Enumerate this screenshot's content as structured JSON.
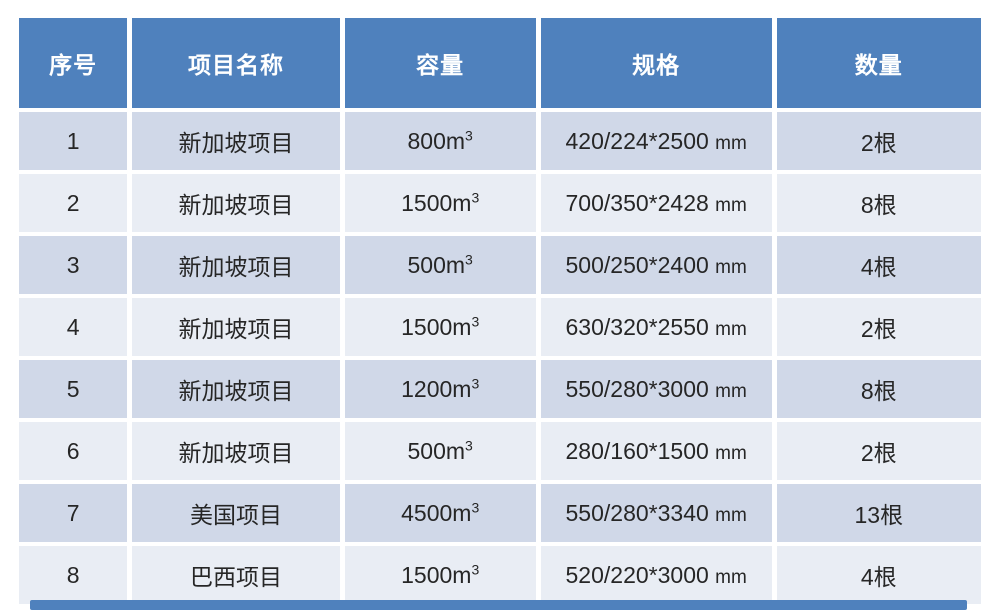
{
  "colors": {
    "header_bg": "#4f81bd",
    "header_text": "#ffffff",
    "band_dark": "#d0d8e8",
    "band_light": "#e9edf4",
    "body_text": "#262626"
  },
  "table": {
    "columns": [
      {
        "label": "序号"
      },
      {
        "label": "项目名称"
      },
      {
        "label": "容量"
      },
      {
        "label": "规格"
      },
      {
        "label": "数量"
      }
    ],
    "rows": [
      {
        "no": "1",
        "name": "新加坡项目",
        "cap": "800m",
        "cap_sup": "3",
        "spec": "420/224*2500",
        "spec_unit": "mm",
        "qty": "2根"
      },
      {
        "no": "2",
        "name": "新加坡项目",
        "cap": "1500m",
        "cap_sup": "3",
        "spec": "700/350*2428",
        "spec_unit": "mm",
        "qty": "8根"
      },
      {
        "no": "3",
        "name": "新加坡项目",
        "cap": "500m",
        "cap_sup": "3",
        "spec": "500/250*2400",
        "spec_unit": "mm",
        "qty": "4根"
      },
      {
        "no": "4",
        "name": "新加坡项目",
        "cap": "1500m",
        "cap_sup": "3",
        "spec": "630/320*2550",
        "spec_unit": "mm",
        "qty": "2根"
      },
      {
        "no": "5",
        "name": "新加坡项目",
        "cap": "1200m",
        "cap_sup": "3",
        "spec": "550/280*3000",
        "spec_unit": "mm",
        "qty": "8根"
      },
      {
        "no": "6",
        "name": "新加坡项目",
        "cap": "500m",
        "cap_sup": "3",
        "spec": "280/160*1500",
        "spec_unit": "mm",
        "qty": "2根"
      },
      {
        "no": "7",
        "name": "美国项目",
        "cap": "4500m",
        "cap_sup": "3",
        "spec": "550/280*3340",
        "spec_unit": "mm",
        "qty": "13根"
      },
      {
        "no": "8",
        "name": "巴西项目",
        "cap": "1500m",
        "cap_sup": "3",
        "spec": "520/220*3000",
        "spec_unit": "mm",
        "qty": "4根"
      }
    ]
  }
}
